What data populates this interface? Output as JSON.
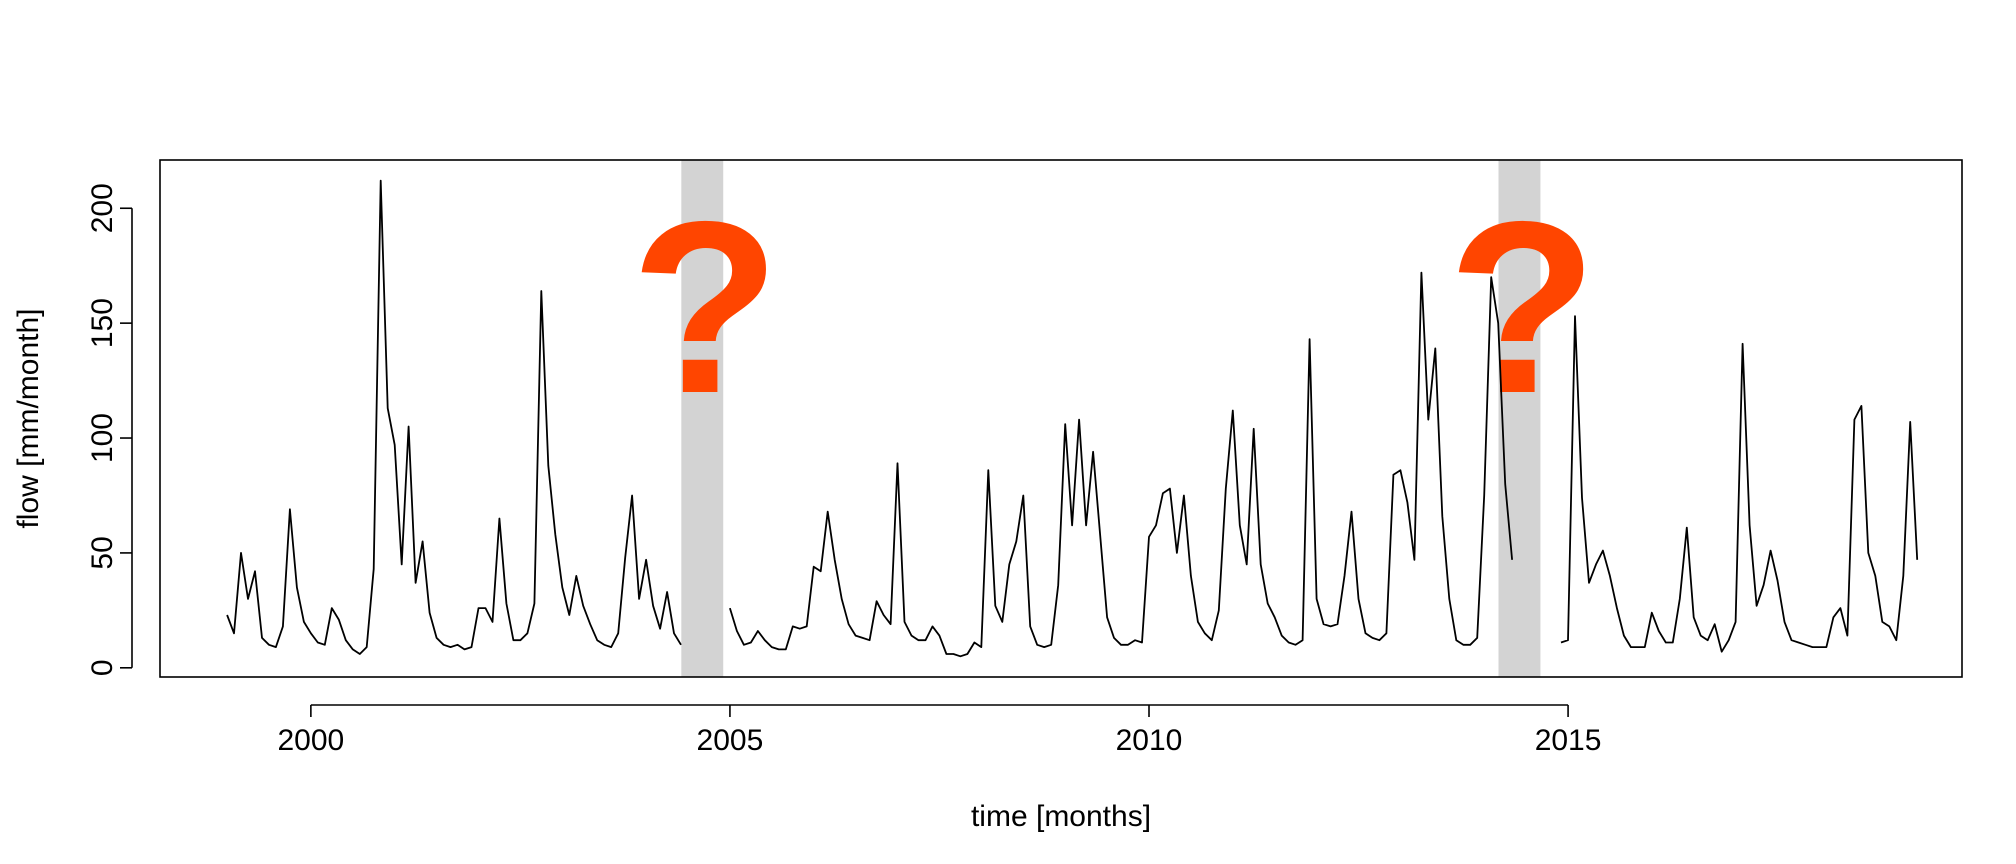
{
  "chart_data": {
    "type": "line",
    "xlabel": "time [months]",
    "ylabel": "flow [mm/month]",
    "xlim": [
      1998.2,
      2019.7
    ],
    "ylim": [
      -4,
      221
    ],
    "x_ticks": [
      2000,
      2005,
      2010,
      2015
    ],
    "x_tick_labels": [
      "2000",
      "2005",
      "2010",
      "2015"
    ],
    "y_ticks": [
      0,
      50,
      100,
      150,
      200
    ],
    "y_tick_labels": [
      "0",
      "50",
      "100",
      "150",
      "200"
    ],
    "grid": false,
    "legend": "none",
    "series": [
      {
        "color": "#000000",
        "x_start": 1999.0,
        "x_step": 0.08333,
        "values": [
          23,
          15,
          50,
          30,
          42,
          13,
          10,
          9,
          18,
          69,
          35,
          20,
          15,
          11,
          10,
          26,
          21,
          12,
          8,
          6,
          9,
          43,
          212,
          113,
          97,
          45,
          105,
          37,
          55,
          24,
          13,
          10,
          9,
          10,
          8,
          9,
          26,
          26,
          20,
          65,
          28,
          12,
          12,
          15,
          28,
          164,
          88,
          58,
          35,
          23,
          40,
          27,
          19,
          12,
          10,
          9,
          15,
          48,
          75,
          30,
          47,
          27,
          17,
          33,
          15,
          10,
          null,
          null,
          null,
          null,
          null,
          null,
          26,
          16,
          10,
          11,
          16,
          12,
          9,
          8,
          8,
          18,
          17,
          18,
          44,
          42,
          68,
          47,
          30,
          19,
          14,
          13,
          12,
          29,
          23,
          19,
          89,
          20,
          14,
          12,
          12,
          18,
          14,
          6,
          6,
          5,
          6,
          11,
          9,
          86,
          27,
          20,
          45,
          55,
          75,
          18,
          10,
          9,
          10,
          36,
          106,
          62,
          108,
          62,
          94,
          58,
          22,
          13,
          10,
          10,
          12,
          11,
          57,
          62,
          76,
          78,
          50,
          75,
          40,
          20,
          15,
          12,
          25,
          78,
          112,
          62,
          45,
          104,
          45,
          28,
          22,
          14,
          11,
          10,
          12,
          143,
          30,
          19,
          18,
          19,
          40,
          68,
          30,
          15,
          13,
          12,
          15,
          84,
          86,
          72,
          47,
          172,
          108,
          139,
          66,
          30,
          12,
          10,
          10,
          13,
          75,
          170,
          150,
          80,
          47,
          null,
          null,
          null,
          null,
          null,
          null,
          11,
          12,
          153,
          74,
          37,
          45,
          51,
          40,
          26,
          14,
          9,
          9,
          9,
          24,
          16,
          11,
          11,
          30,
          61,
          22,
          14,
          12,
          19,
          7,
          12,
          20,
          141,
          62,
          27,
          36,
          51,
          38,
          20,
          12,
          11,
          10,
          9,
          9,
          9,
          22,
          26,
          14,
          108,
          114,
          50,
          40,
          20,
          18,
          12,
          40,
          107,
          47
        ]
      }
    ],
    "missing_periods": [
      [
        2004.42,
        2004.92
      ],
      [
        2014.17,
        2014.67
      ]
    ],
    "annotations": [
      {
        "text": "?",
        "x": 2004.67,
        "color": "#ff4500"
      },
      {
        "text": "?",
        "x": 2014.42,
        "color": "#ff4500"
      }
    ]
  }
}
